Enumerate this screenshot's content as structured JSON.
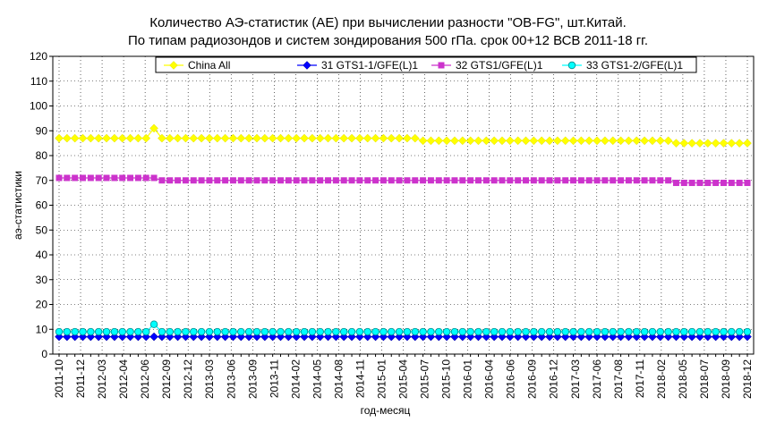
{
  "chart_data": {
    "type": "line",
    "title": "Количество АЭ-статистик (АЕ) при вычислении разности \"OB-FG\", шт.Китай.",
    "subtitle": "По типам радиозондов и систем зондирования 500 гПа. срок 00+12 ВСВ 2011-18 гг.",
    "xlabel": "год-месяц",
    "ylabel": "аэ-статистики",
    "ylim": [
      0,
      120
    ],
    "yticks": [
      0,
      10,
      20,
      30,
      40,
      50,
      60,
      70,
      80,
      90,
      100,
      110,
      120
    ],
    "grid": true,
    "legend_position": "top",
    "x_start": "2011-10",
    "x_count": 88,
    "xtick_labels": [
      "2011-10",
      "2011-12",
      "2012-03",
      "2012-04",
      "2012-06",
      "2012-09",
      "2012-12",
      "2013-03",
      "2013-06",
      "2013-09",
      "2013-11",
      "2014-02",
      "2014-05",
      "2014-08",
      "2014-11",
      "2015-01",
      "2015-04",
      "2015-07",
      "2015-10",
      "2016-01",
      "2016-04",
      "2016-06",
      "2016-09",
      "2016-12",
      "2017-03",
      "2017-06",
      "2017-08",
      "2017-11",
      "2018-02",
      "2018-05",
      "2018-07",
      "2018-09",
      "2018-12"
    ],
    "series": [
      {
        "name": "China All",
        "color": "#ffff00",
        "marker": "diamond",
        "segments": [
          {
            "from": "2011-10",
            "to": "2012-09",
            "value": 87
          },
          {
            "from": "2012-10",
            "to": "2012-10",
            "value": 91
          },
          {
            "from": "2012-11",
            "to": "2015-07",
            "value": 87
          },
          {
            "from": "2015-08",
            "to": "2018-03",
            "value": 86
          },
          {
            "from": "2018-04",
            "to": "2019-01",
            "value": 85
          }
        ]
      },
      {
        "name": "31 GTS1-1/GFE(L)1",
        "color": "#0000ff",
        "marker": "diamond",
        "segments": [
          {
            "from": "2011-10",
            "to": "2019-01",
            "value": 7
          }
        ]
      },
      {
        "name": "32 GTS1/GFE(L)1",
        "color": "#cc33cc",
        "marker": "square",
        "segments": [
          {
            "from": "2011-10",
            "to": "2012-10",
            "value": 71
          },
          {
            "from": "2012-11",
            "to": "2018-03",
            "value": 70
          },
          {
            "from": "2018-04",
            "to": "2019-01",
            "value": 69
          }
        ]
      },
      {
        "name": "33 GTS1-2/GFE(L)1",
        "color": "#00ffff",
        "marker": "circle",
        "segments": [
          {
            "from": "2011-10",
            "to": "2012-09",
            "value": 9
          },
          {
            "from": "2012-10",
            "to": "2012-10",
            "value": 12
          },
          {
            "from": "2012-11",
            "to": "2019-01",
            "value": 9
          }
        ]
      }
    ]
  }
}
